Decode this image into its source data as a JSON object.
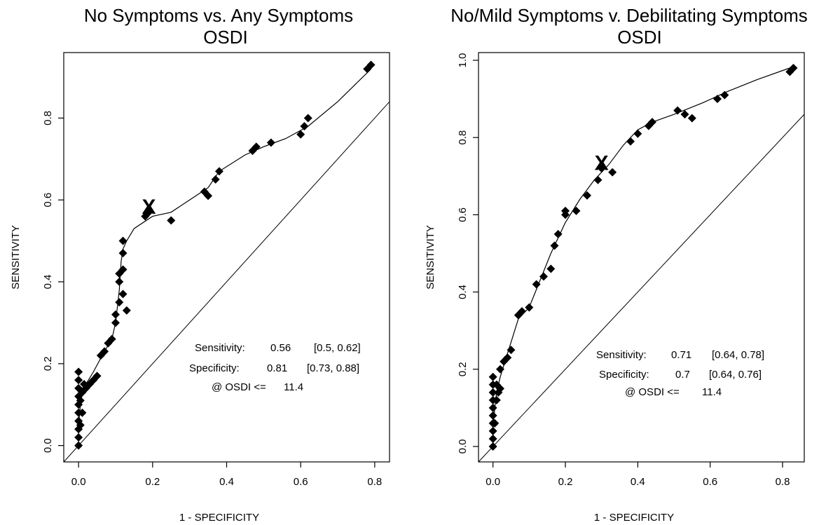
{
  "chart_data": [
    {
      "type": "line",
      "title": "No Symptoms vs. Any Symptoms",
      "subtitle": "OSDI",
      "xlabel": "1 - SPECIFICITY",
      "ylabel": "SENSITIVITY",
      "xlim": [
        -0.04,
        0.84
      ],
      "ylim": [
        -0.04,
        0.96
      ],
      "xticks": [
        "0.0",
        "0.2",
        "0.4",
        "0.6",
        "0.8"
      ],
      "yticks": [
        "0.0",
        "0.2",
        "0.4",
        "0.6",
        "0.8"
      ],
      "grid": false,
      "diagonal": true,
      "curve": {
        "x": [
          0.0,
          0.0,
          0.005,
          0.01,
          0.02,
          0.04,
          0.07,
          0.09,
          0.1,
          0.11,
          0.115,
          0.12,
          0.13,
          0.15,
          0.2,
          0.25,
          0.3,
          0.35,
          0.38,
          0.45,
          0.5,
          0.56,
          0.62,
          0.7,
          0.79
        ],
        "y": [
          0.0,
          0.05,
          0.1,
          0.13,
          0.15,
          0.18,
          0.23,
          0.26,
          0.3,
          0.38,
          0.45,
          0.48,
          0.5,
          0.53,
          0.56,
          0.57,
          0.6,
          0.63,
          0.67,
          0.71,
          0.73,
          0.75,
          0.78,
          0.84,
          0.92
        ]
      },
      "points": {
        "x": [
          0.0,
          0.0,
          0.0,
          0.0,
          0.0,
          0.0,
          0.0,
          0.0,
          0.0,
          0.0,
          0.005,
          0.005,
          0.01,
          0.01,
          0.015,
          0.02,
          0.03,
          0.04,
          0.05,
          0.06,
          0.07,
          0.08,
          0.09,
          0.1,
          0.1,
          0.11,
          0.11,
          0.12,
          0.12,
          0.12,
          0.11,
          0.12,
          0.13,
          0.18,
          0.19,
          0.25,
          0.34,
          0.35,
          0.37,
          0.38,
          0.47,
          0.48,
          0.52,
          0.6,
          0.61,
          0.62,
          0.78,
          0.79
        ],
        "y": [
          0.0,
          0.02,
          0.04,
          0.06,
          0.08,
          0.1,
          0.12,
          0.14,
          0.16,
          0.18,
          0.05,
          0.11,
          0.08,
          0.13,
          0.15,
          0.14,
          0.15,
          0.16,
          0.17,
          0.22,
          0.23,
          0.25,
          0.26,
          0.3,
          0.32,
          0.35,
          0.4,
          0.43,
          0.47,
          0.5,
          0.42,
          0.37,
          0.33,
          0.56,
          0.57,
          0.55,
          0.62,
          0.61,
          0.65,
          0.67,
          0.72,
          0.73,
          0.74,
          0.76,
          0.78,
          0.8,
          0.92,
          0.93
        ]
      },
      "marker": {
        "x": 0.19,
        "y": 0.57,
        "label": "X"
      },
      "annotations": [
        {
          "label": "Sensitivity:",
          "value": "0.56",
          "ci": "[0.5, 0.62]"
        },
        {
          "label": "Specificity:",
          "value": "0.81",
          "ci": "[0.73, 0.88]"
        },
        {
          "label": "@ OSDI <=",
          "value": "11.4",
          "ci": ""
        }
      ]
    },
    {
      "type": "line",
      "title": "No/Mild Symptoms v. Debilitating Symptoms",
      "subtitle": "OSDI",
      "xlabel": "1 - SPECIFICITY",
      "ylabel": "SENSITIVITY",
      "xlim": [
        -0.04,
        0.86
      ],
      "ylim": [
        -0.04,
        1.02
      ],
      "xticks": [
        "0.0",
        "0.2",
        "0.4",
        "0.6",
        "0.8"
      ],
      "yticks": [
        "0.0",
        "0.2",
        "0.4",
        "0.6",
        "0.8",
        "1.0"
      ],
      "grid": false,
      "diagonal": true,
      "curve": {
        "x": [
          0.0,
          0.0,
          0.005,
          0.01,
          0.02,
          0.04,
          0.07,
          0.1,
          0.13,
          0.16,
          0.2,
          0.24,
          0.28,
          0.32,
          0.36,
          0.4,
          0.44,
          0.5,
          0.58,
          0.65,
          0.73,
          0.82
        ],
        "y": [
          0.0,
          0.05,
          0.1,
          0.14,
          0.18,
          0.24,
          0.33,
          0.36,
          0.43,
          0.5,
          0.58,
          0.64,
          0.69,
          0.73,
          0.78,
          0.82,
          0.84,
          0.86,
          0.89,
          0.92,
          0.95,
          0.98
        ]
      },
      "points": {
        "x": [
          0.0,
          0.0,
          0.0,
          0.0,
          0.0,
          0.0,
          0.0,
          0.0,
          0.0,
          0.0,
          0.005,
          0.01,
          0.01,
          0.015,
          0.02,
          0.02,
          0.03,
          0.04,
          0.05,
          0.07,
          0.08,
          0.1,
          0.12,
          0.14,
          0.16,
          0.17,
          0.18,
          0.2,
          0.2,
          0.23,
          0.26,
          0.29,
          0.3,
          0.33,
          0.38,
          0.4,
          0.43,
          0.44,
          0.51,
          0.53,
          0.55,
          0.62,
          0.64,
          0.82,
          0.83
        ],
        "y": [
          0.0,
          0.02,
          0.04,
          0.06,
          0.08,
          0.1,
          0.12,
          0.14,
          0.16,
          0.18,
          0.06,
          0.12,
          0.16,
          0.14,
          0.15,
          0.2,
          0.22,
          0.23,
          0.25,
          0.34,
          0.35,
          0.36,
          0.42,
          0.44,
          0.46,
          0.52,
          0.55,
          0.6,
          0.61,
          0.61,
          0.65,
          0.69,
          0.72,
          0.71,
          0.79,
          0.81,
          0.83,
          0.84,
          0.87,
          0.86,
          0.85,
          0.9,
          0.91,
          0.97,
          0.98
        ]
      },
      "marker": {
        "x": 0.3,
        "y": 0.72,
        "label": "X"
      },
      "annotations": [
        {
          "label": "Sensitivity:",
          "value": "0.71",
          "ci": "[0.64, 0.78]"
        },
        {
          "label": "Specificity:",
          "value": "0.7",
          "ci": "[0.64, 0.76]"
        },
        {
          "label": "@ OSDI <=",
          "value": "11.4",
          "ci": ""
        }
      ]
    }
  ]
}
